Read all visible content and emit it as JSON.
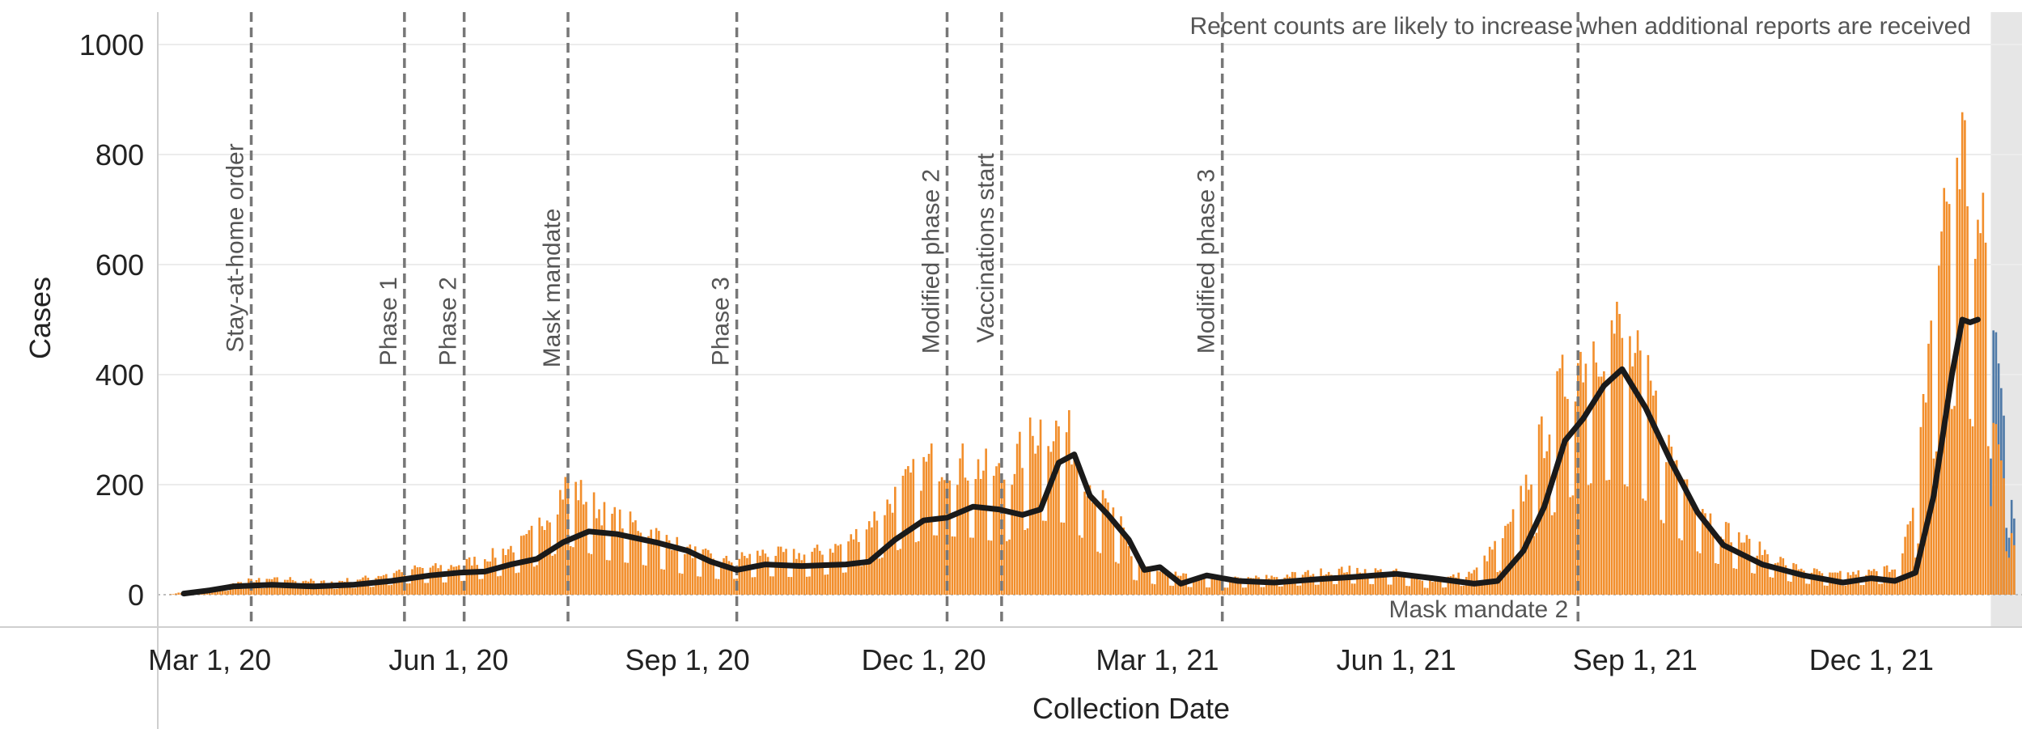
{
  "chart_data": {
    "type": "bar",
    "xlabel": "Collection Date",
    "ylabel": "Cases",
    "ylim": [
      0,
      1050
    ],
    "x_range": [
      "2020-02-10",
      "2022-01-28"
    ],
    "x_ticks": [
      {
        "date": "2020-03-01",
        "label": "Mar 1, 20"
      },
      {
        "date": "2020-06-01",
        "label": "Jun 1, 20"
      },
      {
        "date": "2020-09-01",
        "label": "Sep 1, 20"
      },
      {
        "date": "2020-12-01",
        "label": "Dec 1, 20"
      },
      {
        "date": "2021-03-01",
        "label": "Mar 1, 21"
      },
      {
        "date": "2021-06-01",
        "label": "Jun 1, 21"
      },
      {
        "date": "2021-09-01",
        "label": "Sep 1, 21"
      },
      {
        "date": "2021-12-01",
        "label": "Dec 1, 21"
      }
    ],
    "y_ticks": [
      0,
      200,
      400,
      600,
      800,
      1000
    ],
    "grid": true,
    "annotation": "Recent counts are likely to increase when additional reports are received",
    "recent_period_start": "2022-01-16",
    "events": [
      {
        "date": "2020-03-17",
        "label": "Stay-at-home order"
      },
      {
        "date": "2020-05-15",
        "label": "Phase 1"
      },
      {
        "date": "2020-06-07",
        "label": "Phase 2"
      },
      {
        "date": "2020-07-17",
        "label": "Mask mandate"
      },
      {
        "date": "2020-09-20",
        "label": "Phase 3"
      },
      {
        "date": "2020-12-10",
        "label": "Modified phase 2"
      },
      {
        "date": "2020-12-31",
        "label": "Vaccinations start"
      },
      {
        "date": "2021-03-26",
        "label": "Modified phase 3"
      },
      {
        "date": "2021-08-10",
        "label": "Mask mandate 2"
      }
    ],
    "series": [
      {
        "type": "bar",
        "color": "#f28e2b",
        "recent_color": "#4e79a7",
        "description": "daily cases",
        "values": [
          [
            "2020-02-15",
            2
          ],
          [
            "2020-03-01",
            8
          ],
          [
            "2020-03-15",
            25
          ],
          [
            "2020-04-01",
            28
          ],
          [
            "2020-04-15",
            22
          ],
          [
            "2020-05-01",
            30
          ],
          [
            "2020-05-15",
            45
          ],
          [
            "2020-06-01",
            50
          ],
          [
            "2020-06-15",
            65
          ],
          [
            "2020-07-01",
            95
          ],
          [
            "2020-07-10",
            150
          ],
          [
            "2020-07-17",
            200
          ],
          [
            "2020-08-01",
            140
          ],
          [
            "2020-08-15",
            120
          ],
          [
            "2020-09-01",
            80
          ],
          [
            "2020-09-15",
            60
          ],
          [
            "2020-10-01",
            75
          ],
          [
            "2020-10-15",
            70
          ],
          [
            "2020-11-01",
            90
          ],
          [
            "2020-11-15",
            150
          ],
          [
            "2020-11-25",
            200
          ],
          [
            "2020-12-05",
            240
          ],
          [
            "2020-12-20",
            230
          ],
          [
            "2021-01-01",
            210
          ],
          [
            "2021-01-15",
            300
          ],
          [
            "2021-01-25",
            290
          ],
          [
            "2021-02-05",
            180
          ],
          [
            "2021-02-15",
            120
          ],
          [
            "2021-02-20",
            60
          ],
          [
            "2021-03-01",
            40
          ],
          [
            "2021-03-15",
            30
          ],
          [
            "2021-04-01",
            28
          ],
          [
            "2021-04-15",
            32
          ],
          [
            "2021-05-01",
            40
          ],
          [
            "2021-05-15",
            45
          ],
          [
            "2021-06-01",
            40
          ],
          [
            "2021-06-15",
            25
          ],
          [
            "2021-07-01",
            40
          ],
          [
            "2021-07-15",
            120
          ],
          [
            "2021-07-25",
            250
          ],
          [
            "2021-08-05",
            380
          ],
          [
            "2021-08-15",
            450
          ],
          [
            "2021-08-25",
            470
          ],
          [
            "2021-09-05",
            380
          ],
          [
            "2021-09-15",
            250
          ],
          [
            "2021-10-01",
            130
          ],
          [
            "2021-10-15",
            90
          ],
          [
            "2021-11-01",
            50
          ],
          [
            "2021-11-15",
            35
          ],
          [
            "2021-12-01",
            40
          ],
          [
            "2021-12-10",
            50
          ],
          [
            "2021-12-18",
            150
          ],
          [
            "2021-12-25",
            550
          ],
          [
            "2022-01-01",
            750
          ],
          [
            "2022-01-05",
            800
          ],
          [
            "2022-01-10",
            650
          ],
          [
            "2022-01-15",
            600
          ],
          [
            "2022-01-20",
            350
          ],
          [
            "2022-01-25",
            150
          ]
        ]
      },
      {
        "type": "line",
        "color": "#1a1a1a",
        "description": "moving average",
        "values": [
          [
            "2020-02-20",
            2
          ],
          [
            "2020-03-01",
            8
          ],
          [
            "2020-03-10",
            15
          ],
          [
            "2020-03-25",
            18
          ],
          [
            "2020-04-10",
            15
          ],
          [
            "2020-04-25",
            18
          ],
          [
            "2020-05-10",
            25
          ],
          [
            "2020-05-25",
            35
          ],
          [
            "2020-06-05",
            40
          ],
          [
            "2020-06-15",
            42
          ],
          [
            "2020-06-25",
            55
          ],
          [
            "2020-07-05",
            65
          ],
          [
            "2020-07-15",
            95
          ],
          [
            "2020-07-25",
            115
          ],
          [
            "2020-08-05",
            110
          ],
          [
            "2020-08-20",
            95
          ],
          [
            "2020-09-01",
            80
          ],
          [
            "2020-09-10",
            60
          ],
          [
            "2020-09-20",
            45
          ],
          [
            "2020-10-01",
            55
          ],
          [
            "2020-10-15",
            52
          ],
          [
            "2020-11-01",
            55
          ],
          [
            "2020-11-10",
            60
          ],
          [
            "2020-11-20",
            100
          ],
          [
            "2020-12-01",
            135
          ],
          [
            "2020-12-10",
            140
          ],
          [
            "2020-12-20",
            160
          ],
          [
            "2020-12-30",
            155
          ],
          [
            "2021-01-08",
            145
          ],
          [
            "2021-01-15",
            155
          ],
          [
            "2021-01-22",
            240
          ],
          [
            "2021-01-28",
            255
          ],
          [
            "2021-02-03",
            180
          ],
          [
            "2021-02-10",
            145
          ],
          [
            "2021-02-18",
            100
          ],
          [
            "2021-02-24",
            45
          ],
          [
            "2021-03-02",
            50
          ],
          [
            "2021-03-10",
            20
          ],
          [
            "2021-03-20",
            35
          ],
          [
            "2021-04-01",
            25
          ],
          [
            "2021-04-15",
            22
          ],
          [
            "2021-05-01",
            28
          ],
          [
            "2021-05-15",
            32
          ],
          [
            "2021-06-01",
            38
          ],
          [
            "2021-06-15",
            30
          ],
          [
            "2021-07-01",
            20
          ],
          [
            "2021-07-10",
            25
          ],
          [
            "2021-07-20",
            80
          ],
          [
            "2021-07-28",
            160
          ],
          [
            "2021-08-05",
            280
          ],
          [
            "2021-08-12",
            320
          ],
          [
            "2021-08-20",
            380
          ],
          [
            "2021-08-27",
            410
          ],
          [
            "2021-09-05",
            340
          ],
          [
            "2021-09-15",
            240
          ],
          [
            "2021-09-25",
            150
          ],
          [
            "2021-10-05",
            90
          ],
          [
            "2021-10-20",
            55
          ],
          [
            "2021-11-05",
            35
          ],
          [
            "2021-11-20",
            22
          ],
          [
            "2021-12-01",
            30
          ],
          [
            "2021-12-10",
            25
          ],
          [
            "2021-12-18",
            40
          ],
          [
            "2021-12-25",
            180
          ],
          [
            "2022-01-01",
            400
          ],
          [
            "2022-01-05",
            500
          ],
          [
            "2022-01-08",
            495
          ],
          [
            "2022-01-11",
            500
          ]
        ]
      }
    ]
  }
}
